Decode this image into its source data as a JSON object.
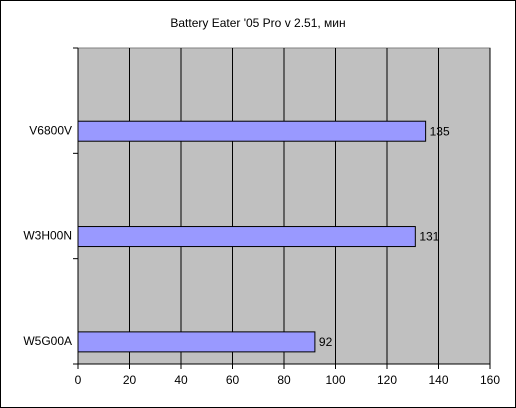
{
  "chart_data": {
    "type": "bar",
    "orientation": "horizontal",
    "title": "Battery Eater '05 Pro v 2.51, мин",
    "categories": [
      "V6800V",
      "W3H00N",
      "W5G00A"
    ],
    "values": [
      135,
      131,
      92
    ],
    "color": "#9999ff",
    "xlim": [
      0,
      160
    ],
    "xticks": [
      0,
      20,
      40,
      60,
      80,
      100,
      120,
      140,
      160
    ],
    "grid": true
  }
}
